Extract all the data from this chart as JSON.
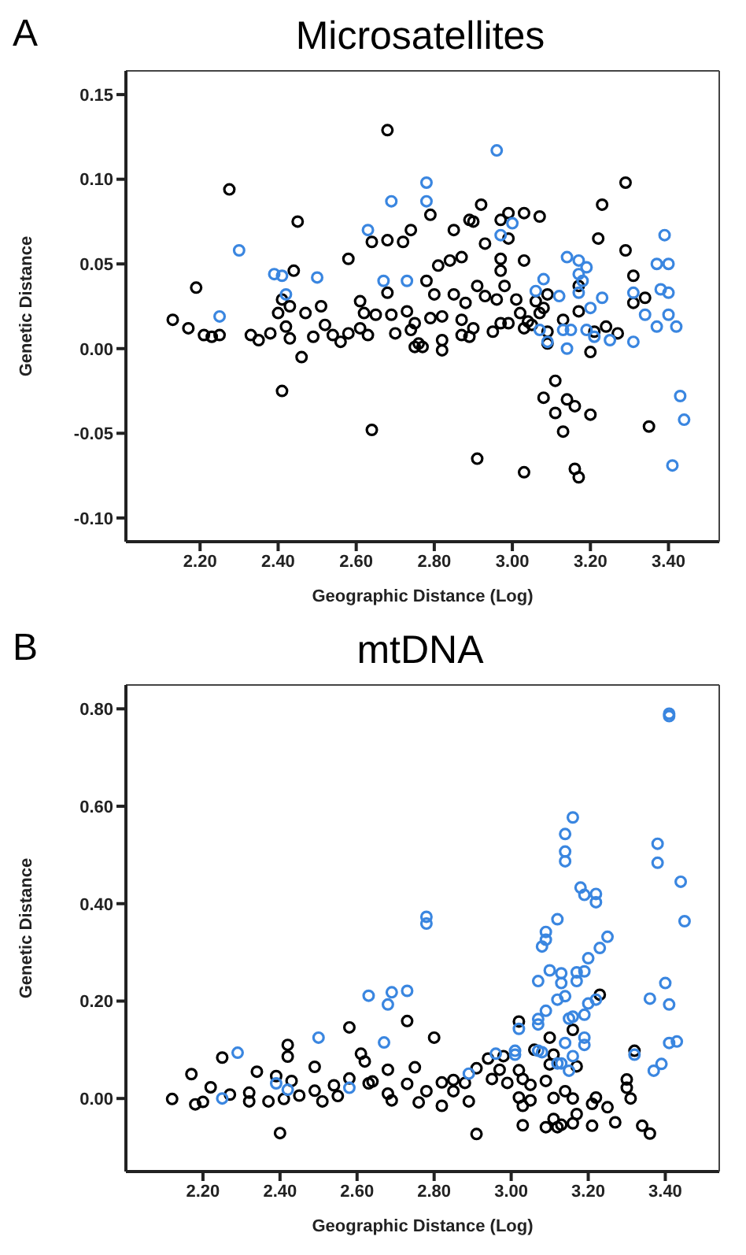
{
  "chart_data": [
    {
      "type": "scatter",
      "title": "Microsatellites",
      "xlabel": "Geographic Distance (Log)",
      "ylabel": "Genetic Distance",
      "annotations": [
        "A"
      ],
      "marker": "circle",
      "xlim": [
        2.01,
        3.53
      ],
      "ylim": [
        -0.114,
        0.164
      ],
      "xticks": [
        {
          "value": 2.2,
          "label": "2.20"
        },
        {
          "value": 2.4,
          "label": "2.40"
        },
        {
          "value": 2.6,
          "label": "2.60"
        },
        {
          "value": 2.8,
          "label": "2.80"
        },
        {
          "value": 3.0,
          "label": "3.00"
        },
        {
          "value": 3.2,
          "label": "3.20"
        },
        {
          "value": 3.4,
          "label": "3.40"
        }
      ],
      "yticks": [
        {
          "value": -0.1,
          "label": "-0.10"
        },
        {
          "value": -0.05,
          "label": "-0.05"
        },
        {
          "value": 0,
          "label": "0.00"
        },
        {
          "value": 0.05,
          "label": "0.05"
        },
        {
          "value": 0.1,
          "label": "0.10"
        },
        {
          "value": 0.15,
          "label": "0.15"
        }
      ],
      "series": [
        {
          "color": "#000000",
          "x": [
            2.275,
            2.68,
            2.45,
            2.44,
            2.58,
            2.64,
            2.68,
            2.72,
            2.74,
            2.79,
            2.85,
            2.84,
            2.81,
            2.87,
            2.89,
            2.9,
            2.92,
            2.93,
            2.97,
            2.99,
            2.99,
            2.97,
            2.97,
            3.03,
            3.03,
            3.07,
            3.22,
            3.23,
            3.29,
            3.29,
            3.31,
            2.78,
            2.19,
            2.13,
            2.17,
            2.21,
            2.23,
            2.25,
            2.33,
            2.35,
            2.38,
            2.4,
            2.41,
            2.43,
            2.42,
            2.43,
            2.46,
            2.47,
            2.41,
            2.49,
            2.51,
            2.52,
            2.54,
            2.56,
            2.58,
            2.61,
            2.61,
            2.62,
            2.63,
            2.65,
            2.64,
            2.68,
            2.69,
            2.7,
            2.73,
            2.74,
            2.75,
            2.75,
            2.76,
            2.77,
            2.79,
            2.8,
            2.82,
            2.82,
            2.82,
            2.85,
            2.87,
            2.87,
            2.88,
            2.89,
            2.9,
            2.91,
            2.93,
            2.91,
            2.95,
            2.96,
            2.97,
            2.98,
            2.99,
            3.01,
            3.02,
            3.03,
            3.04,
            3.05,
            3.06,
            3.07,
            3.08,
            3.09,
            3.09,
            3.09,
            3.03,
            3.08,
            3.11,
            3.11,
            3.13,
            3.14,
            3.16,
            3.16,
            3.17,
            3.13,
            3.17,
            3.17,
            3.2,
            3.2,
            3.21,
            3.24,
            3.27,
            3.31,
            3.34,
            3.35
          ],
          "values": [
            0.094,
            0.129,
            0.075,
            0.046,
            0.053,
            0.063,
            0.064,
            0.063,
            0.07,
            0.079,
            0.07,
            0.052,
            0.049,
            0.054,
            0.076,
            0.075,
            0.085,
            0.062,
            0.076,
            0.08,
            0.065,
            0.053,
            0.046,
            0.08,
            0.052,
            0.078,
            0.065,
            0.085,
            0.098,
            0.058,
            0.043,
            0.04,
            0.036,
            0.017,
            0.012,
            0.008,
            0.007,
            0.008,
            0.008,
            0.005,
            0.009,
            0.021,
            0.029,
            0.025,
            0.013,
            0.006,
            -0.005,
            0.021,
            -0.025,
            0.007,
            0.025,
            0.014,
            0.008,
            0.004,
            0.009,
            0.028,
            0.012,
            0.021,
            0.008,
            0.02,
            -0.048,
            0.033,
            0.02,
            0.009,
            0.022,
            0.011,
            0.015,
            0.001,
            0.003,
            0.001,
            0.018,
            0.032,
            0.005,
            -0.001,
            0.019,
            0.032,
            0.017,
            0.008,
            0.027,
            0.007,
            0.012,
            0.037,
            0.031,
            -0.065,
            0.01,
            0.029,
            0.015,
            0.037,
            0.015,
            0.029,
            0.021,
            0.012,
            0.016,
            0.014,
            0.028,
            0.021,
            0.024,
            0.032,
            0.01,
            0.003,
            -0.073,
            -0.029,
            -0.019,
            -0.038,
            -0.049,
            -0.03,
            -0.034,
            -0.071,
            -0.076,
            0.017,
            0.037,
            0.022,
            -0.039,
            -0.002,
            0.01,
            0.013,
            0.009,
            0.027,
            0.03,
            -0.046
          ]
        },
        {
          "color": "#3a86e0",
          "x": [
            2.3,
            2.39,
            2.41,
            2.5,
            2.63,
            2.69,
            2.67,
            2.73,
            2.78,
            2.78,
            2.96,
            3.0,
            2.97,
            3.14,
            3.17,
            3.19,
            3.17,
            3.08,
            3.39,
            3.37,
            3.4,
            3.18,
            2.25,
            2.42,
            3.06,
            3.07,
            3.09,
            3.12,
            3.13,
            3.14,
            3.15,
            3.17,
            3.19,
            3.21,
            3.23,
            3.2,
            3.25,
            3.31,
            3.31,
            3.34,
            3.37,
            3.4,
            3.4,
            3.42,
            3.43,
            3.44,
            3.41,
            3.38
          ],
          "values": [
            0.058,
            0.044,
            0.043,
            0.042,
            0.07,
            0.087,
            0.04,
            0.04,
            0.098,
            0.087,
            0.117,
            0.074,
            0.067,
            0.054,
            0.052,
            0.048,
            0.044,
            0.041,
            0.067,
            0.05,
            0.05,
            0.04,
            0.019,
            0.032,
            0.034,
            0.011,
            0.004,
            0.031,
            0.011,
            0.0,
            0.011,
            0.033,
            0.011,
            0.007,
            0.03,
            0.024,
            0.005,
            0.033,
            0.004,
            0.02,
            0.013,
            0.033,
            0.02,
            0.013,
            -0.028,
            -0.042,
            -0.069,
            0.035
          ]
        }
      ]
    },
    {
      "type": "scatter",
      "title": "mtDNA",
      "xlabel": "Geographic Distance (Log)",
      "ylabel": "Genetic Distance",
      "annotations": [
        "B"
      ],
      "marker": "circle",
      "xlim": [
        2.0,
        3.54
      ],
      "ylim": [
        -0.15,
        0.849
      ],
      "xticks": [
        {
          "value": 2.2,
          "label": "2.20"
        },
        {
          "value": 2.4,
          "label": "2.40"
        },
        {
          "value": 2.6,
          "label": "2.60"
        },
        {
          "value": 2.8,
          "label": "2.80"
        },
        {
          "value": 3.0,
          "label": "3.00"
        },
        {
          "value": 3.2,
          "label": "3.20"
        },
        {
          "value": 3.4,
          "label": "3.40"
        }
      ],
      "yticks": [
        {
          "value": 0,
          "label": "0.00"
        },
        {
          "value": 0.2,
          "label": "0.20"
        },
        {
          "value": 0.4,
          "label": "0.40"
        },
        {
          "value": 0.6,
          "label": "0.60"
        },
        {
          "value": 0.8,
          "label": "0.80"
        }
      ],
      "series": [
        {
          "color": "#000000",
          "x": [
            2.12,
            2.17,
            2.18,
            2.2,
            2.22,
            2.25,
            2.27,
            2.32,
            2.34,
            2.32,
            2.37,
            2.39,
            2.42,
            2.42,
            2.43,
            2.4,
            2.41,
            2.45,
            2.49,
            2.49,
            2.51,
            2.54,
            2.58,
            2.58,
            2.55,
            2.61,
            2.62,
            2.63,
            2.64,
            2.68,
            2.68,
            2.69,
            2.73,
            2.73,
            2.75,
            2.76,
            2.8,
            2.78,
            2.82,
            2.82,
            2.85,
            2.85,
            2.88,
            2.91,
            2.91,
            2.89,
            2.94,
            2.95,
            2.98,
            2.97,
            2.99,
            3.02,
            3.02,
            3.02,
            3.03,
            3.06,
            3.03,
            3.03,
            3.05,
            3.05,
            3.1,
            3.1,
            3.11,
            3.09,
            3.09,
            3.11,
            3.12,
            3.14,
            3.13,
            3.16,
            3.17,
            3.16,
            3.17,
            3.16,
            3.21,
            3.21,
            3.23,
            3.22,
            3.25,
            3.27,
            3.3,
            3.3,
            3.31,
            3.32,
            3.34,
            3.36,
            3.11
          ],
          "values": [
            -0.001,
            0.05,
            -0.012,
            -0.007,
            0.023,
            0.084,
            0.008,
            0.012,
            0.055,
            -0.006,
            -0.006,
            0.046,
            0.11,
            0.086,
            0.036,
            -0.071,
            -0.001,
            0.006,
            0.065,
            0.016,
            -0.006,
            0.027,
            0.146,
            0.041,
            0.005,
            0.092,
            0.076,
            0.031,
            0.035,
            0.059,
            0.01,
            -0.004,
            0.159,
            0.03,
            0.064,
            -0.008,
            0.125,
            0.015,
            0.033,
            -0.015,
            0.038,
            0.015,
            0.032,
            0.062,
            -0.073,
            -0.006,
            0.082,
            0.04,
            0.087,
            0.059,
            0.032,
            0.058,
            0.158,
            0.002,
            -0.015,
            0.1,
            0.04,
            -0.055,
            0.028,
            -0.004,
            0.125,
            0.07,
            0.09,
            0.036,
            -0.059,
            -0.042,
            -0.059,
            0.015,
            -0.054,
            0.141,
            -0.032,
            -0.051,
            0.066,
            0.0,
            -0.056,
            -0.011,
            0.213,
            0.002,
            -0.018,
            -0.049,
            0.039,
            0.022,
            0.0,
            0.098,
            -0.056,
            -0.072,
            0.001
          ]
        },
        {
          "color": "#3a86e0",
          "x": [
            3.41,
            3.41,
            3.16,
            3.14,
            3.14,
            3.14,
            3.18,
            3.19,
            3.22,
            3.22,
            3.38,
            3.38,
            3.44,
            2.78,
            2.78,
            3.12,
            3.45,
            3.09,
            3.09,
            3.08,
            3.25,
            3.23,
            3.2,
            3.1,
            3.13,
            3.17,
            3.19,
            3.07,
            3.13,
            3.17,
            3.14,
            3.12,
            3.2,
            3.22,
            3.19,
            3.16,
            3.15,
            3.09,
            3.07,
            3.07,
            3.19,
            3.19,
            3.14,
            3.16,
            3.12,
            3.13,
            3.15,
            3.4,
            3.36,
            3.41,
            3.41,
            3.43,
            3.39,
            3.37,
            3.32,
            2.63,
            2.69,
            2.68,
            2.73,
            2.67,
            2.5,
            2.29,
            2.39,
            2.42,
            2.58,
            2.25,
            2.89,
            2.96,
            3.01,
            3.01,
            3.02,
            3.08,
            3.07
          ],
          "values": [
            0.79,
            0.785,
            0.577,
            0.543,
            0.507,
            0.487,
            0.433,
            0.418,
            0.42,
            0.403,
            0.523,
            0.484,
            0.445,
            0.373,
            0.359,
            0.368,
            0.364,
            0.342,
            0.326,
            0.312,
            0.332,
            0.309,
            0.288,
            0.263,
            0.257,
            0.259,
            0.261,
            0.241,
            0.237,
            0.241,
            0.21,
            0.203,
            0.195,
            0.203,
            0.172,
            0.168,
            0.164,
            0.18,
            0.163,
            0.152,
            0.125,
            0.11,
            0.114,
            0.087,
            0.072,
            0.072,
            0.057,
            0.237,
            0.205,
            0.193,
            0.114,
            0.117,
            0.071,
            0.057,
            0.09,
            0.211,
            0.218,
            0.193,
            0.221,
            0.115,
            0.125,
            0.094,
            0.031,
            0.018,
            0.022,
            0.0,
            0.051,
            0.092,
            0.098,
            0.09,
            0.143,
            0.095,
            0.098
          ]
        }
      ]
    }
  ]
}
